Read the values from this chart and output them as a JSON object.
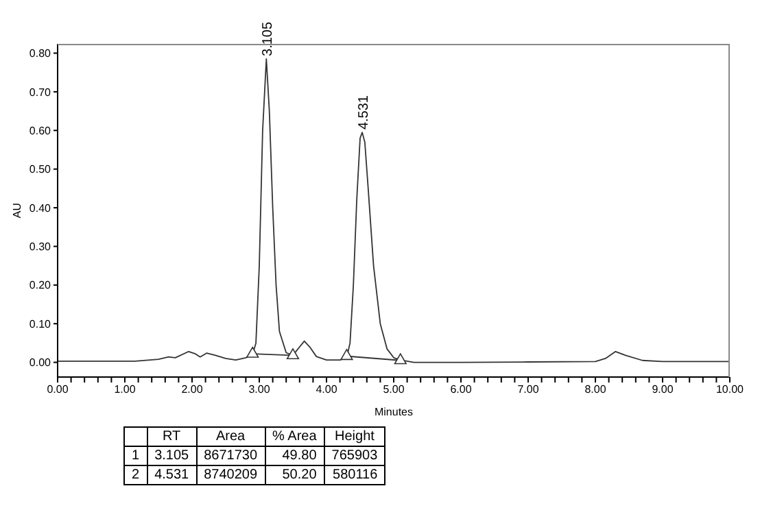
{
  "chart_data": {
    "type": "line",
    "xlabel": "Minutes",
    "ylabel": "AU",
    "xlim": [
      0,
      10
    ],
    "ylim": [
      -0.038,
      0.824
    ],
    "xticks": [
      {
        "value": 0,
        "label": "0.00"
      },
      {
        "value": 0.2,
        "label": null
      },
      {
        "value": 0.4,
        "label": null
      },
      {
        "value": 0.6,
        "label": null
      },
      {
        "value": 0.8,
        "label": null
      },
      {
        "value": 1,
        "label": "1.00"
      },
      {
        "value": 1.2,
        "label": null
      },
      {
        "value": 1.4,
        "label": null
      },
      {
        "value": 1.6,
        "label": null
      },
      {
        "value": 1.8,
        "label": null
      },
      {
        "value": 2,
        "label": "2.00"
      },
      {
        "value": 2.2,
        "label": null
      },
      {
        "value": 2.4,
        "label": null
      },
      {
        "value": 2.6,
        "label": null
      },
      {
        "value": 2.8,
        "label": null
      },
      {
        "value": 3,
        "label": "3.00"
      },
      {
        "value": 3.2,
        "label": null
      },
      {
        "value": 3.4,
        "label": null
      },
      {
        "value": 3.6,
        "label": null
      },
      {
        "value": 3.8,
        "label": null
      },
      {
        "value": 4,
        "label": "4.00"
      },
      {
        "value": 4.2,
        "label": null
      },
      {
        "value": 4.4,
        "label": null
      },
      {
        "value": 4.6,
        "label": null
      },
      {
        "value": 4.8,
        "label": null
      },
      {
        "value": 5,
        "label": "5.00"
      },
      {
        "value": 5.2,
        "label": null
      },
      {
        "value": 5.4,
        "label": null
      },
      {
        "value": 5.6,
        "label": null
      },
      {
        "value": 5.8,
        "label": null
      },
      {
        "value": 6,
        "label": "6.00"
      },
      {
        "value": 6.2,
        "label": null
      },
      {
        "value": 6.4,
        "label": null
      },
      {
        "value": 6.6,
        "label": null
      },
      {
        "value": 6.8,
        "label": null
      },
      {
        "value": 7,
        "label": "7.00"
      },
      {
        "value": 7.2,
        "label": null
      },
      {
        "value": 7.4,
        "label": null
      },
      {
        "value": 7.6,
        "label": null
      },
      {
        "value": 7.8,
        "label": null
      },
      {
        "value": 8,
        "label": "8.00"
      },
      {
        "value": 8.2,
        "label": null
      },
      {
        "value": 8.4,
        "label": null
      },
      {
        "value": 8.6,
        "label": null
      },
      {
        "value": 8.8,
        "label": null
      },
      {
        "value": 9,
        "label": "9.00"
      },
      {
        "value": 9.2,
        "label": null
      },
      {
        "value": 9.4,
        "label": null
      },
      {
        "value": 9.6,
        "label": null
      },
      {
        "value": 9.8,
        "label": null
      },
      {
        "value": 10,
        "label": "10.00"
      }
    ],
    "yticks": [
      {
        "value": 0,
        "label": "0.00"
      },
      {
        "value": 0.1,
        "label": "0.10"
      },
      {
        "value": 0.2,
        "label": "0.20"
      },
      {
        "value": 0.3,
        "label": "0.30"
      },
      {
        "value": 0.4,
        "label": "0.40"
      },
      {
        "value": 0.5,
        "label": "0.50"
      },
      {
        "value": 0.6,
        "label": "0.60"
      },
      {
        "value": 0.7,
        "label": "0.70"
      },
      {
        "value": 0.8,
        "label": "0.80"
      }
    ],
    "series": [
      {
        "color": "#333333",
        "marker": "none",
        "x": [
          0,
          1.15,
          1.5,
          1.65,
          1.75,
          1.95,
          2.05,
          2.12,
          2.22,
          2.35,
          2.5,
          2.65,
          2.8,
          2.9,
          2.95,
          3.0,
          3.05,
          3.105,
          3.15,
          3.2,
          3.25,
          3.3,
          3.4,
          3.5,
          3.6,
          3.67,
          3.75,
          3.85,
          4.0,
          4.2,
          4.3,
          4.35,
          4.4,
          4.45,
          4.5,
          4.531,
          4.57,
          4.62,
          4.7,
          4.8,
          4.9,
          5.0,
          5.1,
          5.3,
          6.0,
          7.0,
          8.0,
          8.15,
          8.3,
          8.45,
          8.7,
          9.0,
          10
        ],
        "values": [
          0.003,
          0.003,
          0.008,
          0.014,
          0.012,
          0.028,
          0.022,
          0.014,
          0.024,
          0.018,
          0.01,
          0.006,
          0.012,
          0.02,
          0.05,
          0.25,
          0.6,
          0.785,
          0.65,
          0.4,
          0.2,
          0.08,
          0.025,
          0.018,
          0.04,
          0.055,
          0.04,
          0.015,
          0.006,
          0.006,
          0.012,
          0.05,
          0.2,
          0.42,
          0.58,
          0.595,
          0.57,
          0.45,
          0.25,
          0.1,
          0.035,
          0.012,
          0.006,
          0.0,
          0.0,
          0.001,
          0.002,
          0.01,
          0.028,
          0.018,
          0.005,
          0.002,
          0.002
        ]
      },
      {
        "color": "#333333",
        "marker": "triangle",
        "x": [
          2.9,
          3.5
        ],
        "values": [
          0.022,
          0.018
        ]
      },
      {
        "color": "#333333",
        "marker": "triangle",
        "x": [
          4.3,
          5.1
        ],
        "values": [
          0.016,
          0.005
        ]
      }
    ],
    "annotations": [
      {
        "text": "3.105",
        "x": 3.105,
        "y": 0.785
      },
      {
        "text": "4.531",
        "x": 4.531,
        "y": 0.595
      },
      "RT",
      "Area",
      "% Area",
      "Height",
      "1",
      "3.105",
      "8671730",
      "49.80",
      "765903",
      "2",
      "4.531",
      "8740209",
      "50.20",
      "580116"
    ]
  }
}
